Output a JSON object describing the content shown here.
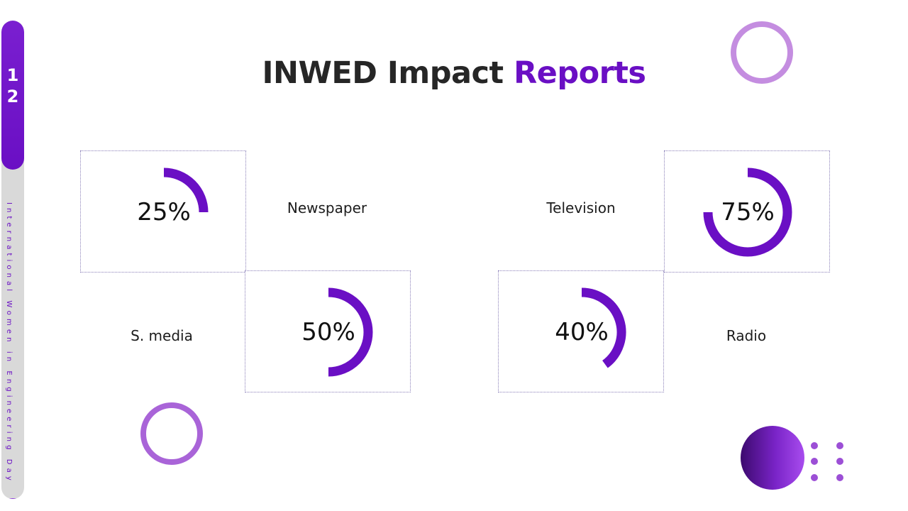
{
  "slide": {
    "number_line1": "1",
    "number_line2": "2",
    "sidebar_caption": "International Women in Engineering Day"
  },
  "title": {
    "main": "INWED Impact",
    "accent": "Reports"
  },
  "colors": {
    "accent": "#6a0fc4",
    "ring_light": "#c48de0",
    "ring_mid": "#a964d8",
    "text_dark": "#262626"
  },
  "chart_data": {
    "type": "pie",
    "categories": [
      "Newspaper",
      "Television",
      "S. media",
      "Radio"
    ],
    "values": [
      25,
      75,
      50,
      40
    ],
    "display_values": [
      "25%",
      "75%",
      "50%",
      "40%"
    ],
    "unit": "%"
  }
}
